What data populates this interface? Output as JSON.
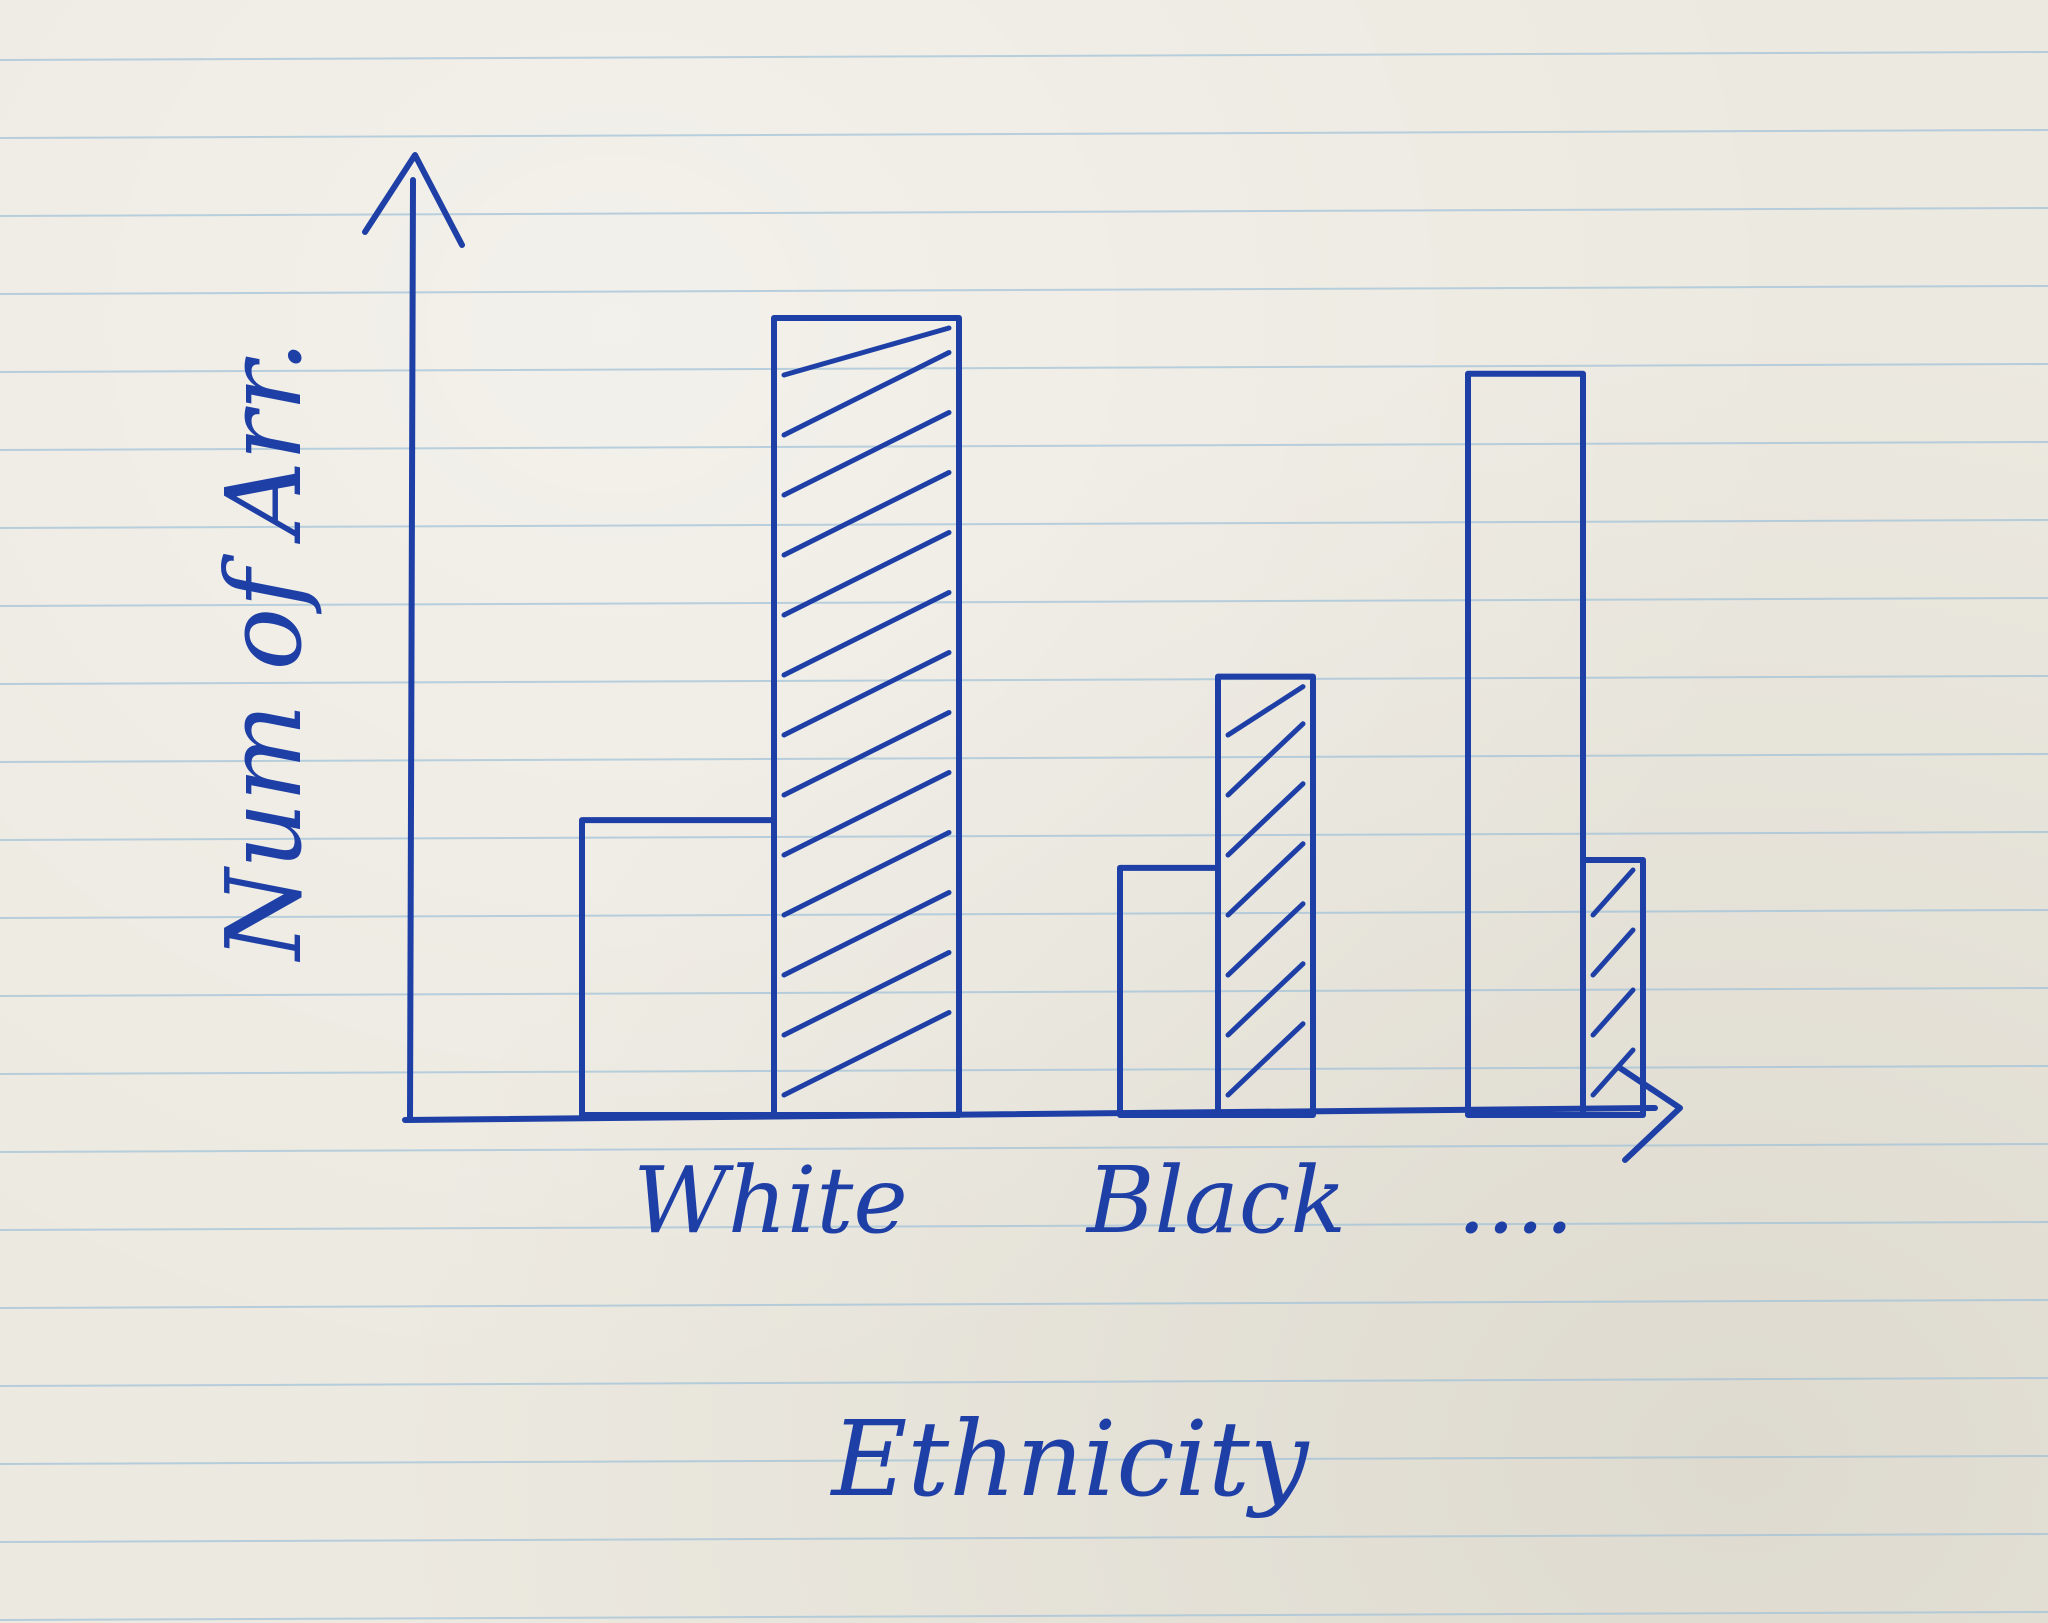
{
  "chart_data": {
    "type": "bar",
    "xlabel": "Ethnicity",
    "ylabel": "Num of Arr.",
    "categories": [
      "White",
      "Black",
      "...."
    ],
    "series": [
      {
        "name": "",
        "hatched": false,
        "values": [
          0.37,
          0.31,
          0.93
        ]
      },
      {
        "name": "",
        "hatched": true,
        "values": [
          1.0,
          0.55,
          0.32
        ]
      }
    ],
    "ylim": [
      0,
      1.2
    ],
    "grid": false,
    "legend": "none"
  },
  "colors": {
    "ink": "#1e3fa6",
    "paper": "#ece9e0",
    "rule_lines": "#9fc1d8"
  }
}
